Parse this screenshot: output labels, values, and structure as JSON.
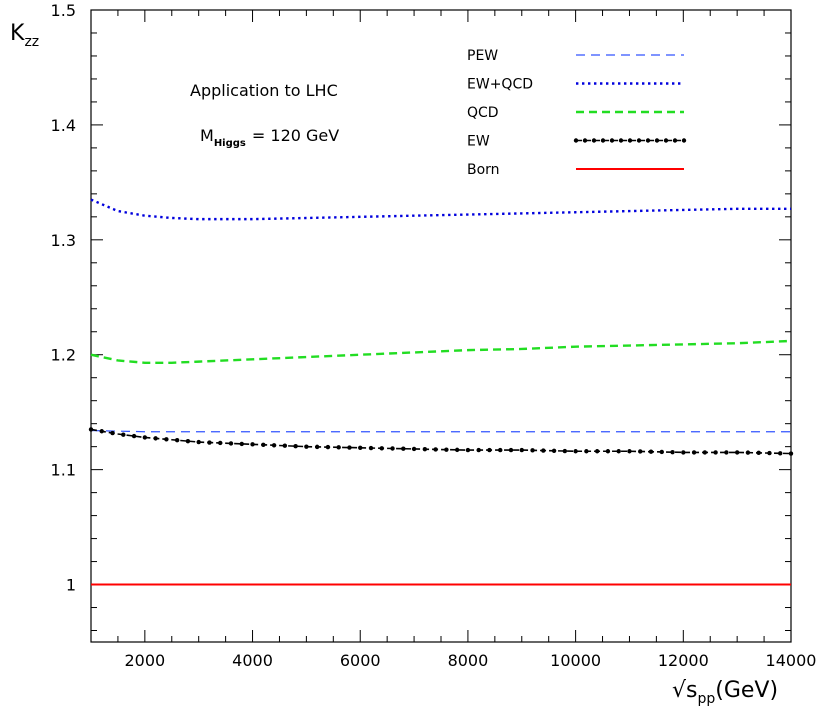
{
  "chart_data": {
    "type": "line",
    "xlim": [
      1000,
      14000
    ],
    "ylim": [
      0.95,
      1.5
    ],
    "x_ticks": [
      "2000",
      "4000",
      "6000",
      "8000",
      "10000",
      "12000",
      "14000"
    ],
    "y_ticks": [
      "1",
      "1.1",
      "1.2",
      "1.3",
      "1.4",
      "1.5"
    ],
    "ylabel": {
      "main": "K",
      "sub": "zz"
    },
    "xlabel": {
      "root": "√s",
      "sub": "pp",
      "unit": "(GeV)"
    },
    "annotations": {
      "title": "Application to LHC",
      "mass_main": "M",
      "mass_sub": "Higgs",
      "mass_value": "= 120 GeV"
    },
    "grid": false,
    "legend_position": "top-right",
    "series": [
      {
        "name": "PEW",
        "color": "#3355ff",
        "style": "dashed",
        "x": [
          1000,
          2000,
          4000,
          6000,
          8000,
          10000,
          12000,
          14000
        ],
        "y": [
          1.134,
          1.133,
          1.133,
          1.133,
          1.133,
          1.133,
          1.133,
          1.133
        ]
      },
      {
        "name": "EW+QCD",
        "color": "#0000dd",
        "style": "dotted",
        "x": [
          1000,
          1500,
          2000,
          2500,
          3000,
          3500,
          4000,
          5000,
          6000,
          7000,
          8000,
          9000,
          10000,
          11000,
          12000,
          13000,
          14000
        ],
        "y": [
          1.335,
          1.325,
          1.321,
          1.319,
          1.318,
          1.318,
          1.318,
          1.319,
          1.32,
          1.321,
          1.322,
          1.323,
          1.324,
          1.325,
          1.326,
          1.327,
          1.327
        ]
      },
      {
        "name": "QCD",
        "color": "#22dd22",
        "style": "dashed-long",
        "x": [
          1000,
          1500,
          2000,
          2500,
          3000,
          4000,
          5000,
          6000,
          7000,
          8000,
          9000,
          10000,
          11000,
          12000,
          13000,
          14000
        ],
        "y": [
          1.2,
          1.195,
          1.193,
          1.193,
          1.194,
          1.196,
          1.198,
          1.2,
          1.202,
          1.204,
          1.205,
          1.207,
          1.208,
          1.209,
          1.21,
          1.212
        ]
      },
      {
        "name": "EW",
        "color": "#000000",
        "style": "dash-dot-markers",
        "x": [
          1000,
          1500,
          2000,
          2500,
          3000,
          4000,
          5000,
          6000,
          7000,
          8000,
          9000,
          10000,
          11000,
          12000,
          13000,
          14000
        ],
        "y": [
          1.135,
          1.131,
          1.128,
          1.126,
          1.124,
          1.122,
          1.12,
          1.119,
          1.118,
          1.117,
          1.117,
          1.116,
          1.116,
          1.115,
          1.115,
          1.114
        ]
      },
      {
        "name": "Born",
        "color": "#ff0000",
        "style": "solid",
        "x": [
          1000,
          14000
        ],
        "y": [
          1.0,
          1.0
        ]
      }
    ]
  }
}
